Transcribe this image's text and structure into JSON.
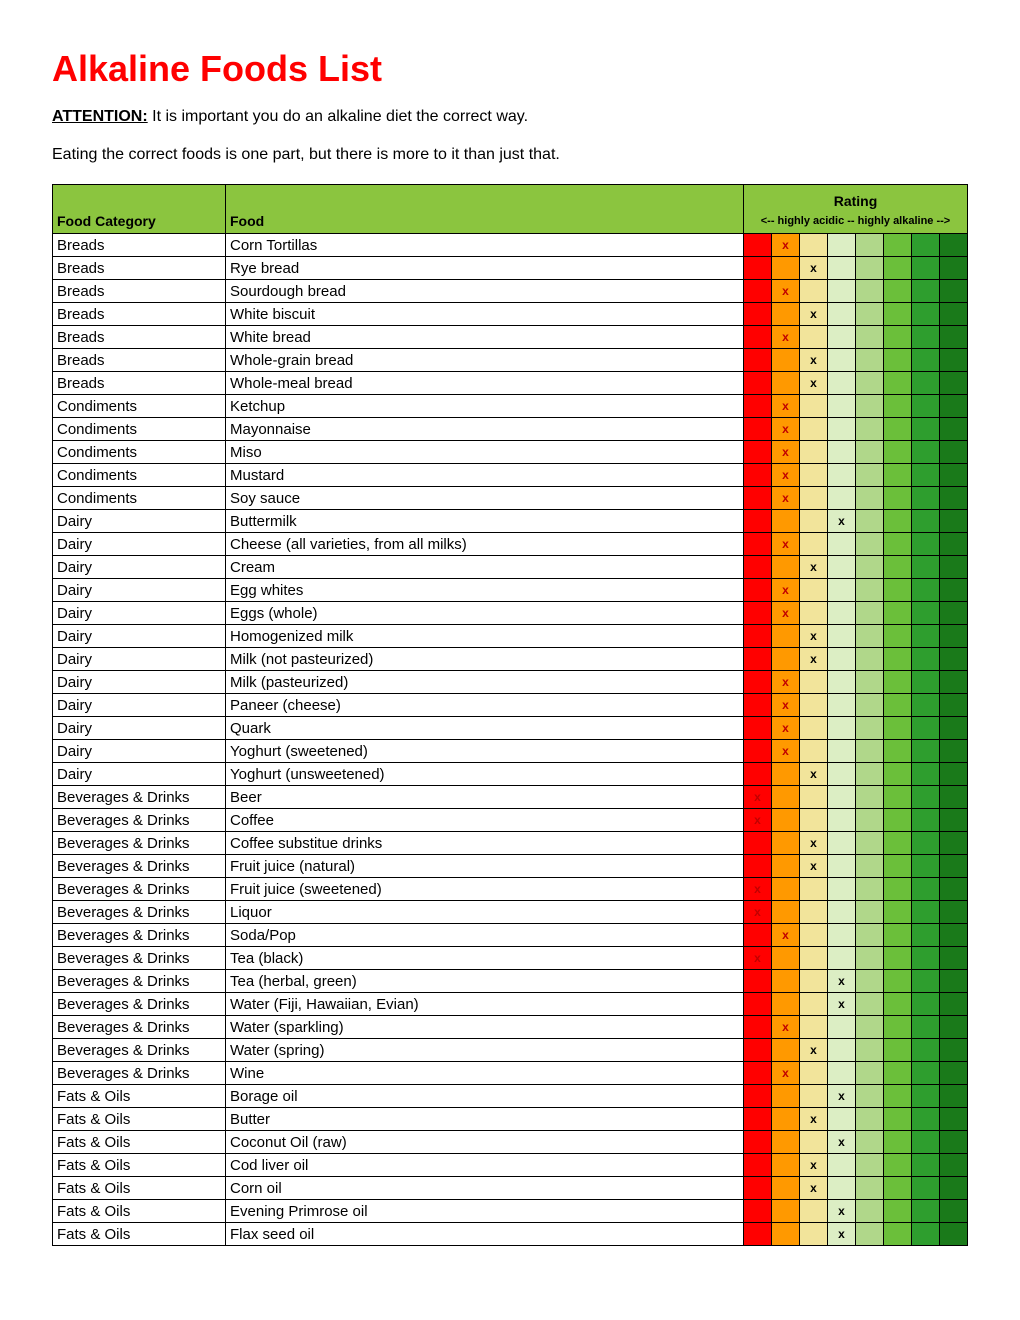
{
  "title": "Alkaline Foods List",
  "attention_label": "ATTENTION:",
  "attention_text": " It is important you do an alkaline diet the correct way.",
  "intro2": "Eating the correct foods is one part, but there is more to it than just that.",
  "columns": {
    "category": "Food Category",
    "food": "Food",
    "rating": "Rating",
    "rating_sub": "<-- highly acidic -- highly alkaline -->"
  },
  "mark_glyph": "x",
  "rating_colors": [
    "#ff0000",
    "#ff9900",
    "#f2e49b",
    "#dceec4",
    "#b0d78a",
    "#6bbf3a",
    "#2e9e2e",
    "#1a7a1a"
  ],
  "rows": [
    {
      "cat": "Breads",
      "food": "Corn Tortillas",
      "mark": 1
    },
    {
      "cat": "Breads",
      "food": "Rye bread",
      "mark": 2
    },
    {
      "cat": "Breads",
      "food": "Sourdough bread",
      "mark": 1
    },
    {
      "cat": "Breads",
      "food": "White biscuit",
      "mark": 2
    },
    {
      "cat": "Breads",
      "food": "White bread",
      "mark": 1
    },
    {
      "cat": "Breads",
      "food": "Whole-grain bread",
      "mark": 2
    },
    {
      "cat": "Breads",
      "food": "Whole-meal bread",
      "mark": 2
    },
    {
      "cat": "Condiments",
      "food": "Ketchup",
      "mark": 1
    },
    {
      "cat": "Condiments",
      "food": "Mayonnaise",
      "mark": 1
    },
    {
      "cat": "Condiments",
      "food": "Miso",
      "mark": 1
    },
    {
      "cat": "Condiments",
      "food": "Mustard",
      "mark": 1
    },
    {
      "cat": "Condiments",
      "food": "Soy sauce",
      "mark": 1
    },
    {
      "cat": "Dairy",
      "food": "Buttermilk",
      "mark": 3
    },
    {
      "cat": "Dairy",
      "food": "Cheese (all varieties, from all milks)",
      "mark": 1
    },
    {
      "cat": "Dairy",
      "food": "Cream",
      "mark": 2
    },
    {
      "cat": "Dairy",
      "food": "Egg whites",
      "mark": 1
    },
    {
      "cat": "Dairy",
      "food": "Eggs (whole)",
      "mark": 1
    },
    {
      "cat": "Dairy",
      "food": "Homogenized milk",
      "mark": 2
    },
    {
      "cat": "Dairy",
      "food": "Milk (not pasteurized)",
      "mark": 2
    },
    {
      "cat": "Dairy",
      "food": "Milk (pasteurized)",
      "mark": 1
    },
    {
      "cat": "Dairy",
      "food": "Paneer (cheese)",
      "mark": 1
    },
    {
      "cat": "Dairy",
      "food": "Quark",
      "mark": 1
    },
    {
      "cat": "Dairy",
      "food": "Yoghurt (sweetened)",
      "mark": 1
    },
    {
      "cat": "Dairy",
      "food": "Yoghurt (unsweetened)",
      "mark": 2
    },
    {
      "cat": "Beverages & Drinks",
      "food": "Beer",
      "mark": 0
    },
    {
      "cat": "Beverages & Drinks",
      "food": "Coffee",
      "mark": 0
    },
    {
      "cat": "Beverages & Drinks",
      "food": "Coffee substitue drinks",
      "mark": 2
    },
    {
      "cat": "Beverages & Drinks",
      "food": "Fruit juice (natural)",
      "mark": 2
    },
    {
      "cat": "Beverages & Drinks",
      "food": "Fruit juice (sweetened)",
      "mark": 0
    },
    {
      "cat": "Beverages & Drinks",
      "food": "Liquor",
      "mark": 0
    },
    {
      "cat": "Beverages & Drinks",
      "food": "Soda/Pop",
      "mark": 1
    },
    {
      "cat": "Beverages & Drinks",
      "food": "Tea (black)",
      "mark": 0
    },
    {
      "cat": "Beverages & Drinks",
      "food": "Tea (herbal, green)",
      "mark": 3
    },
    {
      "cat": "Beverages & Drinks",
      "food": "Water (Fiji, Hawaiian, Evian)",
      "mark": 3
    },
    {
      "cat": "Beverages & Drinks",
      "food": "Water (sparkling)",
      "mark": 1
    },
    {
      "cat": "Beverages & Drinks",
      "food": "Water (spring)",
      "mark": 2
    },
    {
      "cat": "Beverages & Drinks",
      "food": "Wine",
      "mark": 1
    },
    {
      "cat": "Fats & Oils",
      "food": "Borage oil",
      "mark": 3
    },
    {
      "cat": "Fats & Oils",
      "food": "Butter",
      "mark": 2
    },
    {
      "cat": "Fats & Oils",
      "food": "Coconut Oil (raw)",
      "mark": 3
    },
    {
      "cat": "Fats & Oils",
      "food": "Cod liver oil",
      "mark": 2
    },
    {
      "cat": "Fats & Oils",
      "food": "Corn oil",
      "mark": 2
    },
    {
      "cat": "Fats & Oils",
      "food": "Evening Primrose oil",
      "mark": 3
    },
    {
      "cat": "Fats & Oils",
      "food": "Flax seed oil",
      "mark": 3
    }
  ]
}
